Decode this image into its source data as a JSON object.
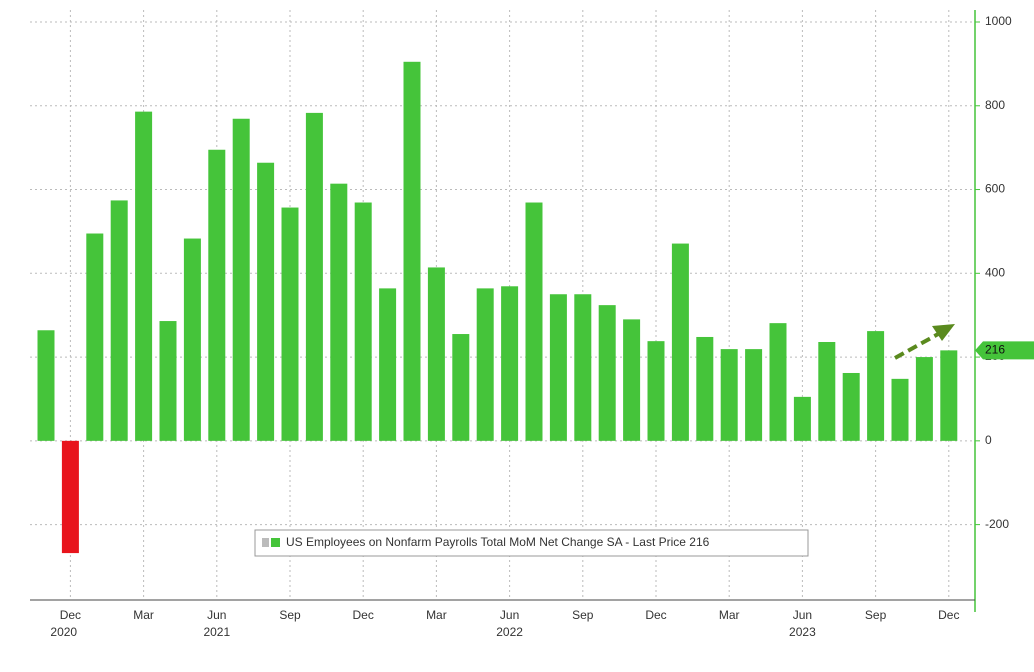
{
  "chart_data": {
    "type": "bar",
    "legend": "US Employees on Nonfarm Payrolls Total MoM Net Change SA - Last Price 216",
    "categories": [
      null,
      "Dec",
      null,
      null,
      "Mar",
      null,
      null,
      "Jun",
      null,
      null,
      "Sep",
      null,
      null,
      "Dec",
      null,
      null,
      "Mar",
      null,
      null,
      "Jun",
      null,
      null,
      "Sep",
      null,
      null,
      "Dec",
      null,
      null,
      "Mar",
      null,
      null,
      "Jun",
      null,
      null,
      "Sep",
      null,
      null,
      "Dec"
    ],
    "years": [
      "2020",
      "2021",
      "2022",
      "2023"
    ],
    "values": [
      264,
      -268,
      495,
      574,
      786,
      286,
      483,
      695,
      769,
      664,
      557,
      783,
      614,
      569,
      364,
      905,
      414,
      255,
      364,
      369,
      569,
      350,
      350,
      324,
      290,
      238,
      471,
      248,
      219,
      219,
      281,
      105,
      236,
      162,
      262,
      148,
      200,
      216
    ],
    "colors": {
      "positive": "#45c43a",
      "negative": "#e8141c"
    },
    "ylim": [
      -380,
      1000
    ],
    "yticks": [
      -200,
      0,
      200,
      400,
      600,
      800,
      1000
    ],
    "grid": true
  }
}
